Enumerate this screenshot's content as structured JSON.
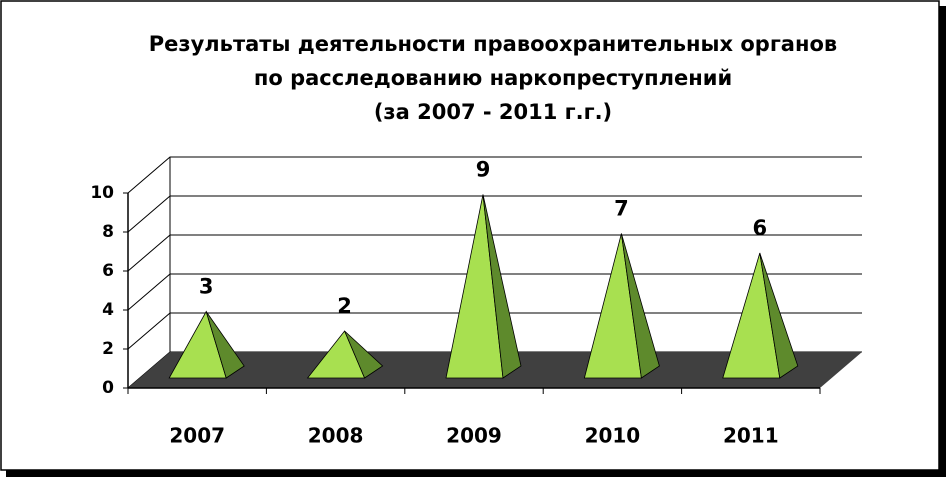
{
  "chart_data": {
    "type": "pyramid",
    "title": [
      "Результаты деятельности правоохранительных органов",
      "по расследованию наркопреступлений",
      "(за 2007 - 2011 г.г.)"
    ],
    "categories": [
      "2007",
      "2008",
      "2009",
      "2010",
      "2011"
    ],
    "values": [
      3,
      2,
      9,
      7,
      6
    ],
    "color": "#a8e050",
    "side_color": "#5e8a2c",
    "floor_color": "#404040",
    "ylim": [
      0,
      10
    ],
    "yticks": [
      0,
      2,
      4,
      6,
      8,
      10
    ],
    "grid": true
  }
}
